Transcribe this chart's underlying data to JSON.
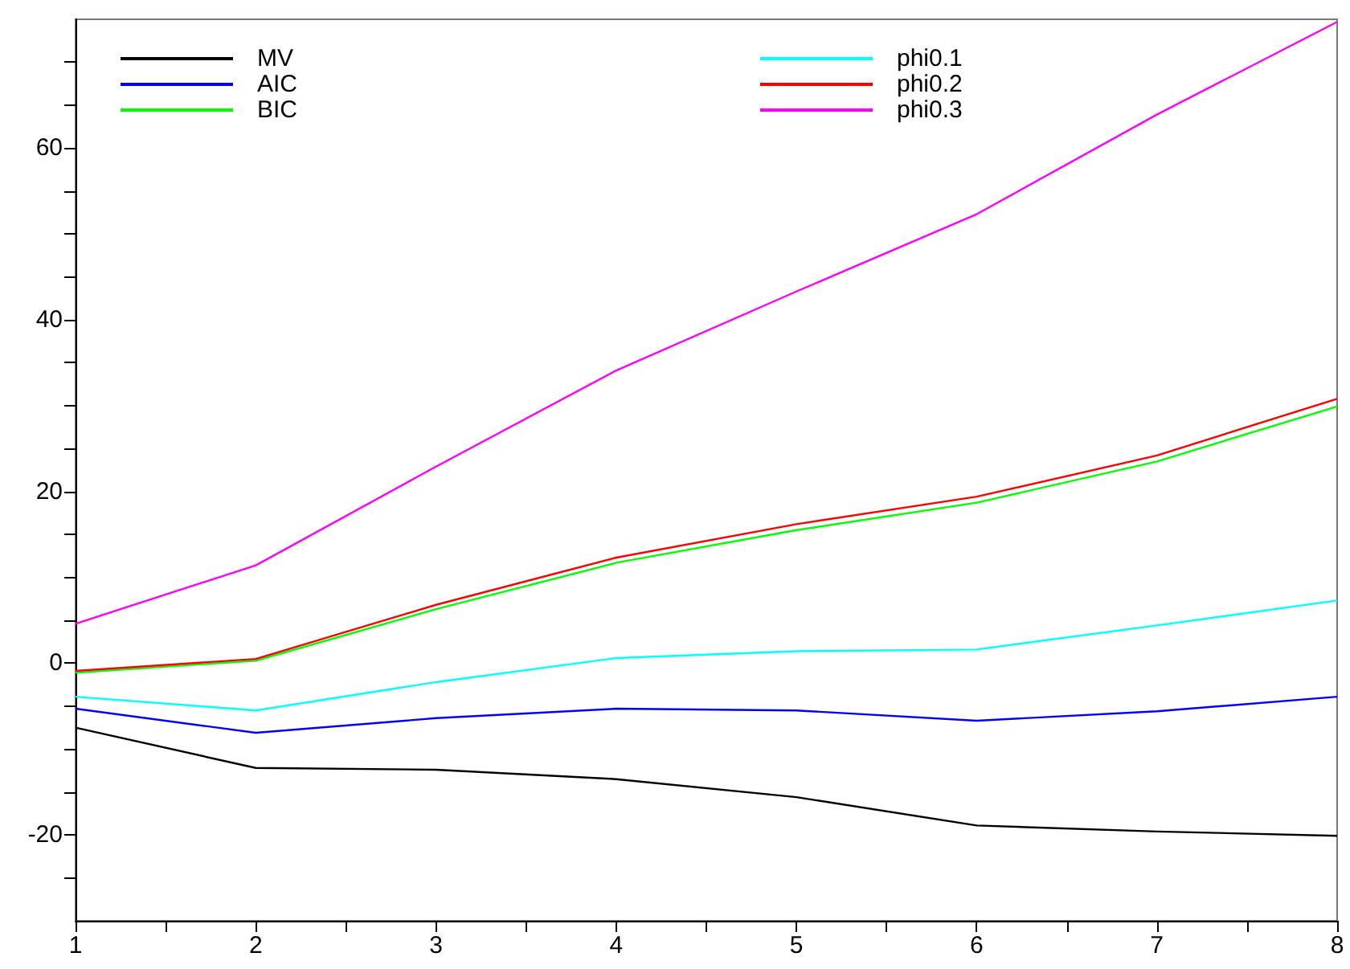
{
  "chart_data": {
    "type": "line",
    "x": [
      1,
      2,
      3,
      4,
      5,
      6,
      7,
      8
    ],
    "series": [
      {
        "name": "MV",
        "color": "#000000",
        "values": [
          -7.5,
          -12.2,
          -12.4,
          -13.5,
          -15.6,
          -18.9,
          -19.6,
          -20.1
        ]
      },
      {
        "name": "AIC",
        "color": "#0000ff",
        "values": [
          -5.3,
          -8.1,
          -6.4,
          -5.3,
          -5.5,
          -6.7,
          -5.6,
          -3.9
        ]
      },
      {
        "name": "BIC",
        "color": "#00ff00",
        "values": [
          -1.1,
          0.3,
          6.3,
          11.7,
          15.5,
          18.7,
          23.5,
          29.9
        ]
      },
      {
        "name": "phi0.1",
        "color": "#00ffff",
        "values": [
          -3.9,
          -5.5,
          -2.2,
          0.6,
          1.4,
          1.6,
          4.4,
          7.3
        ]
      },
      {
        "name": "phi0.2",
        "color": "#ff0000",
        "values": [
          -0.9,
          0.5,
          6.8,
          12.3,
          16.2,
          19.4,
          24.2,
          30.8
        ]
      },
      {
        "name": "phi0.3",
        "color": "#ff00ff",
        "values": [
          4.6,
          11.4,
          22.9,
          34.1,
          43.3,
          52.3,
          63.9,
          74.7
        ]
      }
    ],
    "xlim": [
      1,
      8
    ],
    "xticks": [
      1,
      {
        "value": 1.5,
        "label": null
      },
      2,
      {
        "value": 2.5,
        "label": null
      },
      3,
      {
        "value": 3.5,
        "label": null
      },
      4,
      {
        "value": 4.5,
        "label": null
      },
      5,
      {
        "value": 5.5,
        "label": null
      },
      6,
      {
        "value": 6.5,
        "label": null
      },
      7,
      {
        "value": 7.5,
        "label": null
      },
      8
    ],
    "ylim": [
      -30,
      75
    ],
    "yticks": [
      {
        "value": -25,
        "label": null
      },
      -20,
      {
        "value": -15,
        "label": null
      },
      {
        "value": -10,
        "label": null
      },
      {
        "value": -5,
        "label": null
      },
      0,
      {
        "value": 5,
        "label": null
      },
      {
        "value": 10,
        "label": null
      },
      {
        "value": 15,
        "label": null
      },
      20,
      {
        "value": 25,
        "label": null
      },
      {
        "value": 30,
        "label": null
      },
      {
        "value": 35,
        "label": null
      },
      40,
      {
        "value": 45,
        "label": null
      },
      {
        "value": 50,
        "label": null
      },
      {
        "value": 55,
        "label": null
      },
      60,
      {
        "value": 65,
        "label": null
      },
      {
        "value": 70,
        "label": null
      }
    ],
    "grid": false,
    "legend": "top",
    "marker": "none",
    "line_style": "solid"
  }
}
